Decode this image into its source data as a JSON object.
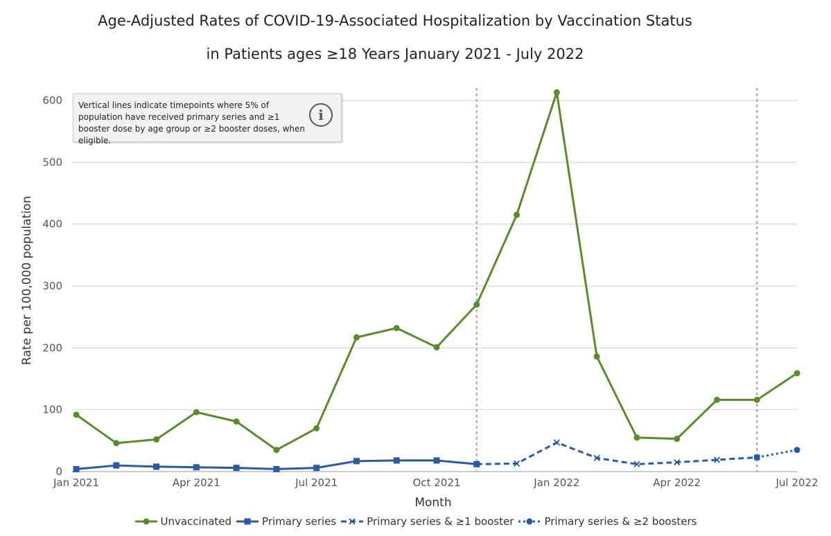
{
  "chart_data": {
    "type": "line",
    "title": "Age-Adjusted Rates of COVID-19-Associated Hospitalization by Vaccination Status",
    "subtitle": "in Patients ages ≥18 Years January 2021 - July 2022",
    "xlabel": "Month",
    "ylabel": "Rate per 100,000 population",
    "ylim": [
      0,
      600
    ],
    "yticks": [
      0,
      100,
      200,
      300,
      400,
      500,
      600
    ],
    "x": [
      "2021-01",
      "2021-02",
      "2021-03",
      "2021-04",
      "2021-05",
      "2021-06",
      "2021-07",
      "2021-08",
      "2021-09",
      "2021-10",
      "2021-11",
      "2021-12",
      "2022-01",
      "2022-02",
      "2022-03",
      "2022-04",
      "2022-05",
      "2022-06",
      "2022-07"
    ],
    "xtick_labels": [
      {
        "x": "2021-01",
        "label": "Jan 2021"
      },
      {
        "x": "2021-04",
        "label": "Apr 2021"
      },
      {
        "x": "2021-07",
        "label": "Jul 2021"
      },
      {
        "x": "2021-10",
        "label": "Oct 2021"
      },
      {
        "x": "2022-01",
        "label": "Jan 2022"
      },
      {
        "x": "2022-04",
        "label": "Apr 2022"
      },
      {
        "x": "2022-07",
        "label": "Jul 2022"
      }
    ],
    "vertical_lines": [
      "2021-11",
      "2022-06"
    ],
    "grid": true,
    "legend_position": "bottom",
    "series": [
      {
        "name": "Unvaccinated",
        "color": "#5b8a2d",
        "marker": "circle",
        "dash": "solid",
        "x": [
          "2021-01",
          "2021-02",
          "2021-03",
          "2021-04",
          "2021-05",
          "2021-06",
          "2021-07",
          "2021-08",
          "2021-09",
          "2021-10",
          "2021-11",
          "2021-12",
          "2022-01",
          "2022-02",
          "2022-03",
          "2022-04",
          "2022-05",
          "2022-06",
          "2022-07"
        ],
        "values": [
          92,
          46,
          52,
          96,
          81,
          35,
          70,
          217,
          232,
          201,
          270,
          415,
          613,
          186,
          55,
          53,
          116,
          116,
          159
        ]
      },
      {
        "name": "Primary series",
        "color": "#2a5aa0",
        "marker": "square",
        "dash": "solid",
        "x": [
          "2021-01",
          "2021-02",
          "2021-03",
          "2021-04",
          "2021-05",
          "2021-06",
          "2021-07",
          "2021-08",
          "2021-09",
          "2021-10",
          "2021-11"
        ],
        "values": [
          4,
          10,
          8,
          7,
          6,
          4,
          6,
          17,
          18,
          18,
          12
        ]
      },
      {
        "name": "Primary series & ≥1 booster",
        "color": "#2a5aa0",
        "marker": "x",
        "dash": "dashed",
        "x": [
          "2021-11",
          "2021-12",
          "2022-01",
          "2022-02",
          "2022-03",
          "2022-04",
          "2022-05",
          "2022-06"
        ],
        "values": [
          12,
          13,
          47,
          22,
          12,
          15,
          19,
          23
        ]
      },
      {
        "name": "Primary series & ≥2 boosters",
        "color": "#2a5aa0",
        "marker": "dot",
        "dash": "dotted",
        "x": [
          "2022-06",
          "2022-07"
        ],
        "values": [
          23,
          35
        ]
      }
    ],
    "annotation": "Vertical lines indicate timepoints where 5% of population have received primary series and ≥1 booster dose by age group or ≥2 booster doses, when eligible.",
    "annotation_icon": "info-icon",
    "annotation_icon_glyph": "i"
  }
}
